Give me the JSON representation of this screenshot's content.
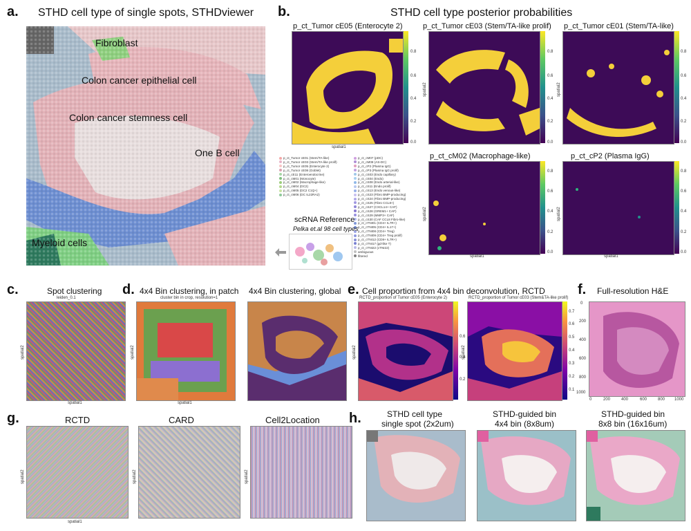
{
  "panel_a": {
    "letter": "a.",
    "title": "STHD cell type of single spots, STHDviewer",
    "labels": {
      "fibroblast": "Fibroblast",
      "epithelial": "Colon cancer epithelial cell",
      "stemness": "Colon cancer stemness cell",
      "bcell": "One B cell",
      "myeloid": "Myeloid cells"
    }
  },
  "panel_b": {
    "letter": "b.",
    "title": "STHD cell type posterior probabilities",
    "plots": [
      {
        "title": "p_ct_Tumor cE05 (Enterocyte 2)"
      },
      {
        "title": "p_ct_Tumor cE03 (Stem/TA-like prolif)"
      },
      {
        "title": "p_ct_Tumor cE01 (Stem/TA-like)"
      },
      {
        "title": "p_ct_cM02 (Macrophage-like)"
      },
      {
        "title": "p_ct_cP2 (Plasma IgG)"
      }
    ],
    "xlabel": "spatial1",
    "ylabel": "spatial2",
    "cbar_ticks": [
      "0.8",
      "0.6",
      "0.4",
      "0.2",
      "0.0"
    ],
    "reference_title": "scRNA Reference",
    "reference_subtitle": "Pelka et.al 98 cell types",
    "legend_col1": [
      "p_ct_Tumor cE01 (Stem/TA-like)",
      "p_ct_Tumor cE03 (Stem/TA-like prolif)",
      "p_ct_Tumor cE05 (Enterocyte 2)",
      "p_ct_Tumor cE08 (Goblet)",
      "p_ct_cE11 (Enteroendocrine)",
      "p_ct_cM01 (Monocyte)",
      "p_ct_cM02 (Macrophage-like)",
      "p_ct_cM04 (DC2)",
      "p_ct_cM05 (DC2 C1Q+)",
      "p_ct_cM06 (DC IL22RA2)"
    ],
    "legend_col2": [
      "p_ct_cM07 (pDC)",
      "p_ct_cM08 (AS-DC)",
      "p_ct_cP2 (Plasma IgG)",
      "p_ct_cP3 (Plasma IgG prolif)",
      "p_ct_cS03 (Endo capillary)",
      "p_ct_cS04 (Endo)",
      "p_ct_cS08 (Endo arterial-like)",
      "p_ct_cS11 (Endo prolif)",
      "p_ct_cS13 (Endo venous-like)",
      "p_ct_cS23 (Fibro BMP-producing)",
      "p_ct_cS24 (Fibro BMP-producing)",
      "p_ct_cS25 (Fibro CCL8+)",
      "p_ct_cS27 (CXCL14+ CAF)",
      "p_ct_cS28 (GREM1+ CAF)",
      "p_ct_cS29 (MMP3+ CAF)",
      "p_ct_cS30 (CAF CCL8 Fibro-like)",
      "p_ct_cTNI01 (CD4+ IL7R+)",
      "p_ct_cTNI05 (CD4+ IL17+)",
      "p_ct_cTNI08 (CD4+ Treg)",
      "p_ct_cTNI09 (CD4+ Treg prolif)",
      "p_ct_cTNI12 (CD8+ IL7R+)",
      "p_ct_cTNI17 (gd-like T)",
      "p_ct_cTNI22 (cTNI22)",
      "ambiguous",
      "filtered"
    ],
    "legend_colors": [
      "#f4a8a8",
      "#e8b4c8",
      "#f7c5c5",
      "#d9a0b0",
      "#a8d8a8",
      "#7fbf7f",
      "#9ccc7a",
      "#b5d98f",
      "#c9e3a3",
      "#8fc99a",
      "#cfa0e0",
      "#b08fd6",
      "#e0a0c0",
      "#c0a0e0",
      "#a0c8e8",
      "#a8d0f0",
      "#90b8e8",
      "#b8c8f0",
      "#98b0e8",
      "#c8c0f0",
      "#b0a8e8",
      "#a098e0",
      "#9088d8",
      "#8878d0",
      "#9890e0",
      "#b0b8f0",
      "#8098d8",
      "#7088d0",
      "#a0a8e8",
      "#9098e0",
      "#8890d8",
      "#7880d0",
      "#b8b8e8",
      "#c0c0c0",
      "#808080"
    ]
  },
  "panel_c": {
    "letter": "c.",
    "title": "Spot clustering",
    "subtitle": "leiden_0.1",
    "xlabel": "spatial1",
    "ylabel": "spatial2"
  },
  "panel_d": {
    "letter": "d.",
    "title1": "4x4 Bin clustering, in patch",
    "subtitle1": "cluster bin in crop, resolution=1",
    "title2": "4x4 Bin clustering, global",
    "xlabel": "spatial1",
    "ylabel": "spatial2"
  },
  "panel_e": {
    "letter": "e.",
    "title": "Cell proportion from 4x4 bin deconvolution, RCTD",
    "subtitle1": "RCTD_proportion of Tumor cE05 (Enterocyte 2)",
    "subtitle2": "RCTD_proportion of Tumor cE03 (Stem&TA-like prolif)",
    "ylabel": "spatial2",
    "cbar_ticks": [
      "0.7",
      "0.6",
      "0.5",
      "0.4",
      "0.3",
      "0.2",
      "0.1"
    ],
    "cbar_ticks_left": [
      "0.6",
      "0.4",
      "0.2"
    ]
  },
  "panel_f": {
    "letter": "f.",
    "title": "Full-resolution H&E",
    "x_ticks": [
      "0",
      "200",
      "400",
      "600",
      "800",
      "1000"
    ],
    "y_ticks": [
      "0",
      "200",
      "400",
      "600",
      "800",
      "1000"
    ]
  },
  "panel_g": {
    "letter": "g.",
    "titles": [
      "RCTD",
      "CARD",
      "Cell2Location"
    ],
    "xlabel": "spatial1",
    "ylabel": "spatial2"
  },
  "panel_h": {
    "letter": "h.",
    "titles": [
      [
        "STHD cell type",
        "single spot (2x2um)"
      ],
      [
        "STHD-guided bin",
        "4x4 bin (8x8um)"
      ],
      [
        "STHD-guided bin",
        "8x8 bin (16x16um)"
      ]
    ]
  }
}
